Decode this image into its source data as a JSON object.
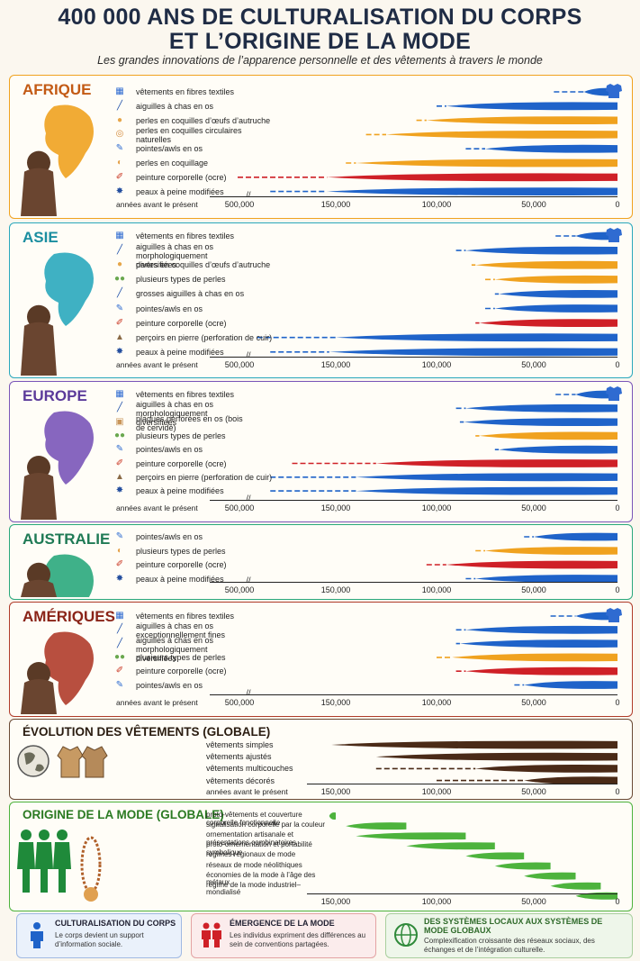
{
  "header": {
    "title_line1": "400 000 ANS DE CULTURALISATION DU CORPS",
    "title_line2": "ET L’ORIGINE DE LA MODE",
    "subtitle": "Les grandes innovations de l’apparence personnelle et des vêtements à travers le monde"
  },
  "colors": {
    "blue": "#1f63c9",
    "orange": "#f0a21f",
    "red": "#cf2027",
    "brown": "#4a2a17",
    "green": "#4db33d"
  },
  "axis": {
    "label": "années avant le présent",
    "ticks": [
      "500,000",
      "150,000",
      "100,000",
      "50,000",
      "0"
    ]
  },
  "chart_data": [
    {
      "type": "bar",
      "title": "AFRIQUE",
      "xlabel": "années avant le présent",
      "rows": [
        {
          "label": "vêtements en fibres textiles",
          "icon": "textile-icon",
          "color": "blue",
          "start": 38000,
          "solid": 20000,
          "end": 0
        },
        {
          "label": "aiguilles à chas en os",
          "icon": "needle-icon",
          "color": "blue",
          "start": 100000,
          "solid": 95000,
          "end": 0
        },
        {
          "label": "perles en coquilles d’œufs d’autruche",
          "icon": "egg-bead-icon",
          "color": "orange",
          "start": 110000,
          "solid": 105000,
          "end": 0
        },
        {
          "label": "perles en coquilles circulaires naturelles",
          "icon": "shell-bead-icon",
          "color": "orange",
          "start": 135000,
          "solid": 125000,
          "end": 0
        },
        {
          "label": "pointes/awls en os",
          "icon": "awl-icon",
          "color": "blue",
          "start": 85000,
          "solid": 75000,
          "end": 0
        },
        {
          "label": "perles en coquillage",
          "icon": "shell-icon",
          "color": "orange",
          "start": 145000,
          "solid": 140000,
          "end": 0
        },
        {
          "label": "peinture corporelle (ocre)",
          "icon": "ocre-icon",
          "color": "red",
          "start": 360000,
          "solid": 170000,
          "end": 0
        },
        {
          "label": "peaux à peine modifiées",
          "icon": "hide-icon",
          "color": "blue",
          "start": 300000,
          "solid": 170000,
          "end": 0
        }
      ]
    },
    {
      "type": "bar",
      "title": "ASIE",
      "xlabel": "années avant le présent",
      "rows": [
        {
          "label": "vêtements en fibres textiles",
          "icon": "textile-icon",
          "color": "blue",
          "start": 37000,
          "solid": 25000,
          "end": 0
        },
        {
          "label": "aiguilles à chas en os morphologiquement diversifiées",
          "icon": "needle-icon",
          "color": "blue",
          "start": 90000,
          "solid": 85000,
          "end": 0
        },
        {
          "label": "perles en coquilles d’œufs d’autruche",
          "icon": "egg-bead-icon",
          "color": "orange",
          "start": 82000,
          "solid": 80000,
          "end": 0
        },
        {
          "label": "plusieurs types de perles",
          "icon": "beads-icon",
          "color": "orange",
          "start": 75000,
          "solid": 70000,
          "end": 0
        },
        {
          "label": "grosses aiguilles à chas en os",
          "icon": "needle-icon",
          "color": "blue",
          "start": 70000,
          "solid": 68000,
          "end": 0
        },
        {
          "label": "pointes/awls en os",
          "icon": "awl-icon",
          "color": "blue",
          "start": 75000,
          "solid": 70000,
          "end": 0
        },
        {
          "label": "peinture corporelle (ocre)",
          "icon": "ocre-icon",
          "color": "red",
          "start": 80000,
          "solid": 78000,
          "end": 0
        },
        {
          "label": "perçoirs en pierre (perforation de cuir)",
          "icon": "stone-drill-icon",
          "color": "blue",
          "start": 330000,
          "solid": 150000,
          "end": 0
        },
        {
          "label": "peaux à peine modifiées",
          "icon": "hide-icon",
          "color": "blue",
          "start": 300000,
          "solid": 165000,
          "end": 0
        }
      ]
    },
    {
      "type": "bar",
      "title": "EUROPE",
      "xlabel": "années avant le présent",
      "rows": [
        {
          "label": "vêtements en fibres textiles",
          "icon": "textile-icon",
          "color": "blue",
          "start": 37000,
          "solid": 25000,
          "end": 0
        },
        {
          "label": "aiguilles à chas en os morphologiquement diversifiées",
          "icon": "needle-icon",
          "color": "blue",
          "start": 90000,
          "solid": 85000,
          "end": 0
        },
        {
          "label": "plaques perforées en os (bois de cervidé)",
          "icon": "plaque-icon",
          "color": "blue",
          "start": 88000,
          "solid": 86000,
          "end": 0
        },
        {
          "label": "plusieurs types de perles",
          "icon": "beads-icon",
          "color": "orange",
          "start": 80000,
          "solid": 78000,
          "end": 0
        },
        {
          "label": "pointes/awls en os",
          "icon": "awl-icon",
          "color": "blue",
          "start": 70000,
          "solid": 68000,
          "end": 0
        },
        {
          "label": "peinture corporelle (ocre)",
          "icon": "ocre-icon",
          "color": "red",
          "start": 250000,
          "solid": 130000,
          "end": 0
        },
        {
          "label": "perçoirs en pierre (perforation de cuir)",
          "icon": "stone-drill-icon",
          "color": "blue",
          "start": 300000,
          "solid": 140000,
          "end": 0
        },
        {
          "label": "peaux à peine modifiées",
          "icon": "hide-icon",
          "color": "blue",
          "start": 300000,
          "solid": 140000,
          "end": 0
        }
      ]
    },
    {
      "type": "bar",
      "title": "AUSTRALIE",
      "rows": [
        {
          "label": "pointes/awls en os",
          "icon": "awl-icon",
          "color": "blue",
          "start": 55000,
          "solid": 50000,
          "end": 0
        },
        {
          "label": "plusieurs types de perles",
          "icon": "shell-icon",
          "color": "orange",
          "start": 80000,
          "solid": 75000,
          "end": 0
        },
        {
          "label": "peinture corporelle (ocre)",
          "icon": "ocre-icon",
          "color": "red",
          "start": 105000,
          "solid": 95000,
          "end": 0
        },
        {
          "label": "peaux à peine modifiées",
          "icon": "hide-icon",
          "color": "blue",
          "start": 85000,
          "solid": 80000,
          "end": 0
        }
      ]
    },
    {
      "type": "bar",
      "title": "AMÉRIQUES",
      "xlabel": "années avant le présent",
      "rows": [
        {
          "label": "vêtements en fibres textiles",
          "icon": "textile-icon",
          "color": "blue",
          "start": 40000,
          "solid": 25000,
          "end": 0
        },
        {
          "label": "aiguilles à chas en os exceptionnellement fines",
          "icon": "needle-icon",
          "color": "blue",
          "start": 90000,
          "solid": 85000,
          "end": 0
        },
        {
          "label": "aiguilles à chas en os morphologiquement diversifiées",
          "icon": "needle-icon",
          "color": "blue",
          "start": 90000,
          "solid": 88000,
          "end": 0
        },
        {
          "label": "plusieurs types de perles",
          "icon": "beads-icon",
          "color": "orange",
          "start": 100000,
          "solid": 92000,
          "end": 0
        },
        {
          "label": "peinture corporelle (ocre)",
          "icon": "ocre-icon",
          "color": "red",
          "start": 90000,
          "solid": 85000,
          "end": 0
        },
        {
          "label": "pointes/awls en os",
          "icon": "awl-icon",
          "color": "blue",
          "start": 60000,
          "solid": 55000,
          "end": 0
        }
      ]
    },
    {
      "type": "bar",
      "title": "ÉVOLUTION DES VÊTEMENTS (GLOBALE)",
      "xlabel": "années avant le présent",
      "ticks": [
        "150,000",
        "100,000",
        "50,000",
        "0"
      ],
      "rows": [
        {
          "label": "vêtements simples",
          "color": "brown",
          "start": 160000,
          "solid": 160000,
          "end": 0
        },
        {
          "label": "vêtements ajustés",
          "color": "brown",
          "start": 130000,
          "solid": 130000,
          "end": 0
        },
        {
          "label": "vêtements multicouches",
          "color": "brown",
          "start": 130000,
          "solid": 80000,
          "end": 0
        },
        {
          "label": "vêtements décorés",
          "color": "brown",
          "start": 100000,
          "solid": 55000,
          "end": 0
        }
      ]
    },
    {
      "type": "bar",
      "title": "ORIGINE DE LA MODE (GLOBALE)",
      "ticks": [
        "150,000",
        "100,000",
        "50,000",
        "0"
      ],
      "rows": [
        {
          "label": "proto-vêtements et couverture corporelle fonctionnelle",
          "color": "green",
          "start": 165000,
          "solid": 165000,
          "end": 150000
        },
        {
          "label": "signalisation corporelle par la couleur",
          "color": "green",
          "start": 145000,
          "solid": 145000,
          "end": 115000
        },
        {
          "label": "ornementation artisanale et présentations combinatoires",
          "color": "green",
          "start": 140000,
          "solid": 140000,
          "end": 85000
        },
        {
          "label": "proto-ornementation et portabilité symbolique",
          "color": "green",
          "start": 115000,
          "solid": 115000,
          "end": 70000
        },
        {
          "label": "régimes régionaux de mode",
          "color": "green",
          "start": 85000,
          "solid": 85000,
          "end": 55000
        },
        {
          "label": "réseaux de mode néolithiques",
          "color": "green",
          "start": 70000,
          "solid": 70000,
          "end": 40000
        },
        {
          "label": "économies de la mode à l’âge des métaux",
          "color": "green",
          "start": 55000,
          "solid": 55000,
          "end": 25000
        },
        {
          "label": "régime de la mode industriel–mondialisé",
          "color": "green",
          "start": 40000,
          "solid": 40000,
          "end": 10000
        },
        {
          "label": "",
          "color": "green",
          "start": 25000,
          "solid": 25000,
          "end": 0
        }
      ]
    }
  ],
  "footer": [
    {
      "title": "CULTURALISATION DU CORPS",
      "text": "Le corps devient un support d’information sociale.",
      "color": "#1f63c9"
    },
    {
      "title": "ÉMERGENCE DE LA MODE",
      "text": "Les individus expriment des différences au sein de conventions partagées.",
      "color": "#cf2027"
    },
    {
      "title": "DES SYSTÈMES LOCAUX AUX SYSTÈMES DE MODE GLOBAUX",
      "text": "Complexification croissante des réseaux sociaux, des échanges et de l’intégration culturelle.",
      "color": "#2f8a3a"
    }
  ]
}
